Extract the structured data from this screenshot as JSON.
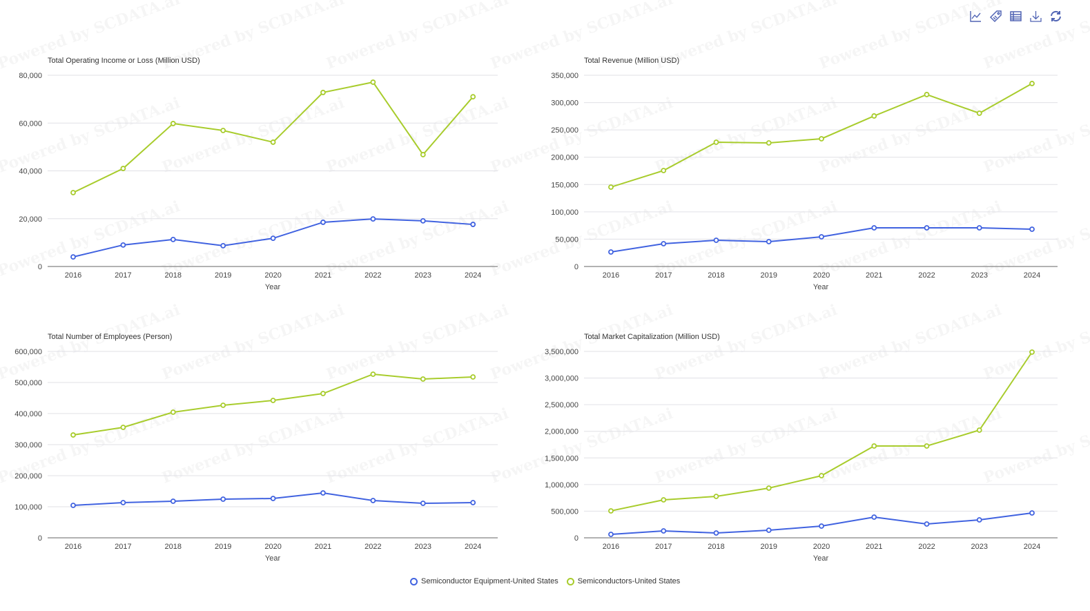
{
  "watermark": "Powered by SCDATA.ai",
  "toolbar": [
    "line-chart-icon",
    "tag-icon",
    "data-table-icon",
    "download-icon",
    "refresh-icon"
  ],
  "colors": {
    "equipment": "#4062e0",
    "semis": "#a8cc2c",
    "grid": "#e0e0e6",
    "axis": "#666"
  },
  "legend": [
    {
      "name": "Semiconductor Equipment-United States",
      "color": "#4062e0"
    },
    {
      "name": "Semiconductors-United States",
      "color": "#a8cc2c"
    }
  ],
  "chart_data": [
    {
      "type": "line",
      "title": "Total Operating Income or Loss (Million USD)",
      "xlabel": "Year",
      "ylabel": "",
      "categories": [
        "2016",
        "2017",
        "2018",
        "2019",
        "2020",
        "2021",
        "2022",
        "2023",
        "2024"
      ],
      "ylim": [
        0,
        80000
      ],
      "yticks": [
        0,
        20000,
        40000,
        60000,
        80000
      ],
      "grid": true,
      "series": [
        {
          "name": "Semiconductor Equipment-United States",
          "values": [
            4000,
            9000,
            11300,
            8700,
            11800,
            18500,
            19900,
            19100,
            17600
          ]
        },
        {
          "name": "Semiconductors-United States",
          "values": [
            30900,
            41000,
            59800,
            56900,
            52000,
            72800,
            77100,
            46800,
            71000
          ]
        }
      ]
    },
    {
      "type": "line",
      "title": "Total Revenue (Million USD)",
      "xlabel": "Year",
      "ylabel": "",
      "categories": [
        "2016",
        "2017",
        "2018",
        "2019",
        "2020",
        "2021",
        "2022",
        "2023",
        "2024"
      ],
      "ylim": [
        0,
        350000
      ],
      "yticks": [
        0,
        50000,
        100000,
        150000,
        200000,
        250000,
        300000,
        350000
      ],
      "grid": true,
      "series": [
        {
          "name": "Semiconductor Equipment-United States",
          "values": [
            26500,
            41700,
            48000,
            45500,
            54300,
            70800,
            70800,
            70800,
            68200
          ]
        },
        {
          "name": "Semiconductors-United States",
          "values": [
            145300,
            175600,
            227400,
            226200,
            233800,
            275500,
            314700,
            280500,
            334900
          ]
        }
      ]
    },
    {
      "type": "line",
      "title": "Total Number of Employees (Person)",
      "xlabel": "Year",
      "ylabel": "",
      "categories": [
        "2016",
        "2017",
        "2018",
        "2019",
        "2020",
        "2021",
        "2022",
        "2023",
        "2024"
      ],
      "ylim": [
        0,
        600000
      ],
      "yticks": [
        0,
        100000,
        200000,
        300000,
        400000,
        500000,
        600000
      ],
      "grid": true,
      "series": [
        {
          "name": "Semiconductor Equipment-United States",
          "values": [
            104400,
            113300,
            117800,
            124400,
            126700,
            144400,
            120000,
            111100,
            113300
          ]
        },
        {
          "name": "Semiconductors-United States",
          "values": [
            331000,
            355600,
            404400,
            426700,
            442200,
            464400,
            526700,
            511100,
            517800
          ]
        }
      ]
    },
    {
      "type": "line",
      "title": "Total Market Capitalization (Million USD)",
      "xlabel": "Year",
      "ylabel": "",
      "categories": [
        "2016",
        "2017",
        "2018",
        "2019",
        "2020",
        "2021",
        "2022",
        "2023",
        "2024"
      ],
      "ylim": [
        0,
        3500000
      ],
      "yticks": [
        0,
        500000,
        1000000,
        1500000,
        2000000,
        2500000,
        3000000,
        3500000
      ],
      "grid": true,
      "series": [
        {
          "name": "Semiconductor Equipment-United States",
          "values": [
            65000,
            130000,
            90700,
            142600,
            220400,
            388900,
            259300,
            337000,
            466700
          ]
        },
        {
          "name": "Semiconductors-United States",
          "values": [
            505600,
            713000,
            777800,
            933300,
            1166700,
            1724000,
            1724000,
            2022000,
            3487000
          ]
        }
      ]
    }
  ]
}
